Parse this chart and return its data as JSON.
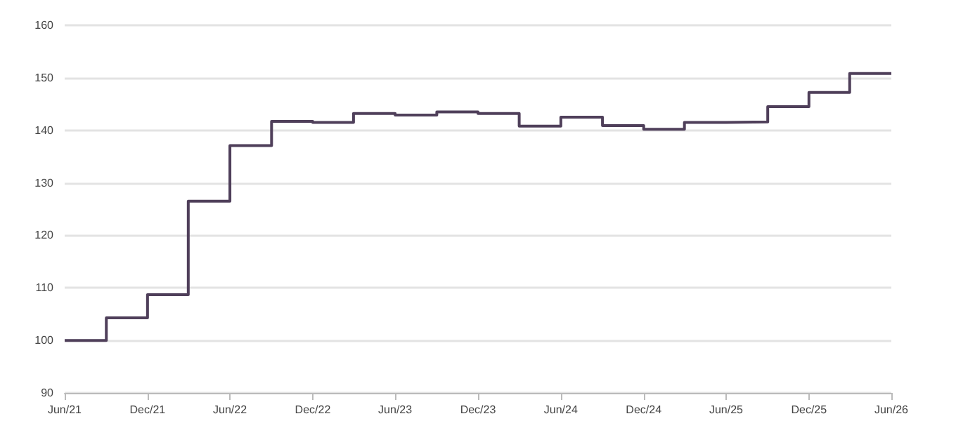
{
  "chart_data": {
    "type": "step",
    "x": [
      "2021-06",
      "2021-09",
      "2021-12",
      "2022-03",
      "2022-06",
      "2022-09",
      "2022-12",
      "2023-03",
      "2023-06",
      "2023-09",
      "2023-12",
      "2024-03",
      "2024-06",
      "2024-09",
      "2024-12",
      "2025-03",
      "2025-06",
      "2025-09",
      "2025-12",
      "2026-03",
      "2026-06"
    ],
    "series": [
      {
        "color": "#4f3f5a",
        "values": [
          100,
          104.3,
          108.7,
          126.5,
          137.1,
          141.7,
          141.5,
          143.2,
          142.9,
          143.5,
          143.2,
          140.8,
          142.5,
          140.9,
          140.2,
          141.5,
          141.6,
          144.5,
          147.2,
          150.8,
          150.8
        ]
      }
    ],
    "xlim": [
      "2021-06",
      "2026-06"
    ],
    "xticks": [
      {
        "value": "2021-06",
        "label": "Jun/21"
      },
      {
        "value": "2021-12",
        "label": "Dec/21"
      },
      {
        "value": "2022-06",
        "label": "Jun/22"
      },
      {
        "value": "2022-12",
        "label": "Dec/22"
      },
      {
        "value": "2023-06",
        "label": "Jun/23"
      },
      {
        "value": "2023-12",
        "label": "Dec/23"
      },
      {
        "value": "2024-06",
        "label": "Jun/24"
      },
      {
        "value": "2024-12",
        "label": "Dec/24"
      },
      {
        "value": "2025-06",
        "label": "Jun/25"
      },
      {
        "value": "2025-12",
        "label": "Dec/25"
      },
      {
        "value": "2026-06",
        "label": "Jun/26"
      }
    ],
    "ylim": [
      90,
      160
    ],
    "yticks": [
      90,
      100,
      110,
      120,
      130,
      140,
      150,
      160
    ],
    "grid": "y",
    "marker": "none",
    "line_style": "solid"
  }
}
